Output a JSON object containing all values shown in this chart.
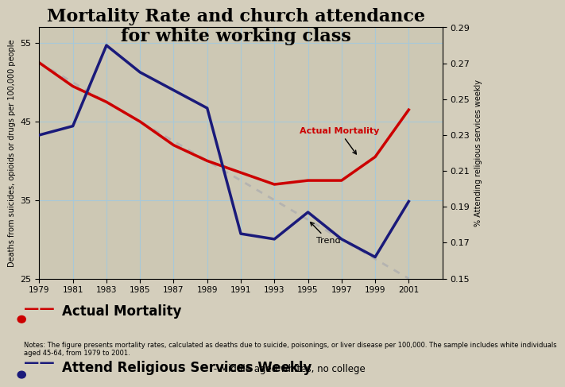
{
  "title": "Mortality Rate and church attendance\nfor white working class",
  "background_color": "#d4cebc",
  "plot_bg_color": "#cdc8b4",
  "grid_color": "#a8c8d8",
  "years": [
    1979,
    1981,
    1983,
    1985,
    1987,
    1989,
    1991,
    1993,
    1995,
    1997,
    1999,
    2001
  ],
  "mortality": [
    52.5,
    49.5,
    47.5,
    45.0,
    42.0,
    40.0,
    38.5,
    37.0,
    37.5,
    37.5,
    40.5,
    46.5
  ],
  "mortality_trend": [
    52.5,
    50.0,
    47.5,
    45.0,
    42.5,
    40.0,
    37.5,
    35.0,
    32.5,
    30.0,
    27.5,
    25.0
  ],
  "church": [
    0.23,
    0.235,
    0.28,
    0.265,
    0.255,
    0.245,
    0.175,
    0.172,
    0.187,
    0.172,
    0.162,
    0.193
  ],
  "mortality_color": "#cc0000",
  "trend_color": "#b0b0b0",
  "church_color": "#1a1a7a",
  "ylim_left": [
    25,
    57
  ],
  "ylim_right": [
    0.15,
    0.29
  ],
  "ylabel_left": "Deaths from suicides, opioids or drugs per 100,000 people",
  "ylabel_right": "% Attending religious services weekly",
  "xlabel": "",
  "yticks_left": [
    25,
    35,
    45,
    55
  ],
  "yticks_right": [
    0.15,
    0.17,
    0.19,
    0.21,
    0.23,
    0.25,
    0.27,
    0.29
  ],
  "legend_mortality_label": "Actual Mortality",
  "legend_church_label": "Attend Religious Services Weekly",
  "legend_church_sub": " - Middle aged whites, no college",
  "annotation_mortality": "Actual Mortality",
  "annotation_trend": "Trend",
  "notes": "Notes: The figure presents mortality rates, calculated as deaths due to suicide, poisonings, or liver disease per 100,000. The sample includes white individuals\naged 45-64, from 1979 to 2001."
}
